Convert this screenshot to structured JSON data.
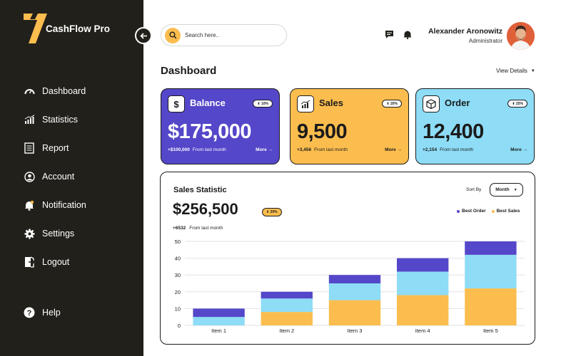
{
  "app": {
    "name": "CashFlow Pro"
  },
  "sidebar": {
    "items": [
      {
        "label": "Dashboard",
        "icon": "gauge-icon"
      },
      {
        "label": "Statistics",
        "icon": "bar-chart-icon"
      },
      {
        "label": "Report",
        "icon": "document-icon"
      },
      {
        "label": "Account",
        "icon": "user-circle-icon"
      },
      {
        "label": "Notification",
        "icon": "bell-icon"
      },
      {
        "label": "Settings",
        "icon": "gear-icon"
      },
      {
        "label": "Logout",
        "icon": "door-exit-icon"
      }
    ],
    "help": "Help"
  },
  "search": {
    "placeholder": "Search here.."
  },
  "user": {
    "name": "Alexander Aronowitz",
    "role": "Administrator"
  },
  "page": {
    "title": "Dashboard",
    "view_details": "View Details"
  },
  "cards": [
    {
      "title": "Balance",
      "badge": "10%",
      "value": "$175,000",
      "delta": "+$100,000",
      "delta_label": "From last month",
      "more": "More",
      "color": "#5447c9",
      "icon": "dollar-icon"
    },
    {
      "title": "Sales",
      "badge": "20%",
      "value": "9,500",
      "delta": "+3,456",
      "delta_label": "From last month",
      "more": "More",
      "color": "#fbbd4e",
      "icon": "trend-chart-icon"
    },
    {
      "title": "Order",
      "badge": "25%",
      "value": "12,400",
      "delta": "+2,154",
      "delta_label": "From last month",
      "more": "More",
      "color": "#8edcf6",
      "icon": "box-icon"
    }
  ],
  "sales_stat": {
    "title": "Sales Statistic",
    "sort_label": "Sort By",
    "sort_value": "Month",
    "value": "$256,500",
    "badge": "20%",
    "delta": "+6532",
    "delta_label": "From last month"
  },
  "colors": {
    "purple": "#5447c9",
    "yellow": "#fbbd4e",
    "blue": "#8edcf6",
    "dark": "#21201b"
  },
  "chart_data": {
    "type": "bar",
    "stacked": true,
    "categories": [
      "Item 1",
      "Item 2",
      "Item 3",
      "Item 4",
      "Item 5"
    ],
    "series": [
      {
        "name": "",
        "values": [
          0,
          8,
          15,
          18,
          22
        ],
        "color": "#fbbd4e"
      },
      {
        "name": "",
        "values": [
          5,
          8,
          10,
          14,
          20
        ],
        "color": "#8edcf6"
      },
      {
        "name": "",
        "values": [
          5,
          4,
          5,
          8,
          8
        ],
        "color": "#5447c9"
      }
    ],
    "legend": [
      {
        "name": "Best Order",
        "color": "#5447c9"
      },
      {
        "name": "Best Sales",
        "color": "#fbbd4e"
      }
    ],
    "yticks": [
      0,
      10,
      20,
      30,
      40,
      50
    ],
    "ylim": [
      0,
      50
    ],
    "grid": true
  }
}
